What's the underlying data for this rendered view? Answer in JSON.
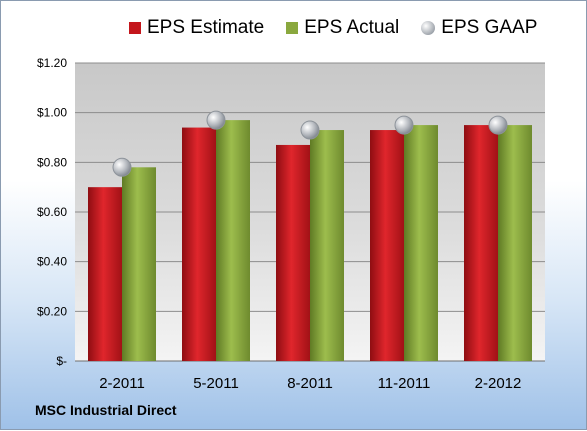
{
  "chart_data": {
    "type": "bar",
    "categories": [
      "2-2011",
      "5-2011",
      "8-2011",
      "11-2011",
      "2-2012"
    ],
    "series": [
      {
        "name": "EPS Estimate",
        "kind": "bar",
        "color": "#c4161c",
        "values": [
          0.7,
          0.94,
          0.87,
          0.93,
          0.95
        ]
      },
      {
        "name": "EPS Actual",
        "kind": "bar",
        "color": "#8aa83e",
        "values": [
          0.78,
          0.97,
          0.93,
          0.95,
          0.95
        ]
      },
      {
        "name": "EPS GAAP",
        "kind": "marker",
        "color": "#b0b5bc",
        "values": [
          0.78,
          0.97,
          0.93,
          0.95,
          0.95
        ]
      }
    ],
    "ylim": [
      0,
      1.2
    ],
    "yticks": [
      0,
      0.2,
      0.4,
      0.6,
      0.8,
      1.0,
      1.2
    ],
    "ytick_labels": [
      "$-",
      "$0.20",
      "$0.40",
      "$0.60",
      "$0.80",
      "$1.00",
      "$1.20"
    ],
    "grid": true,
    "legend_position": "top"
  },
  "company": "MSC Industrial Direct"
}
